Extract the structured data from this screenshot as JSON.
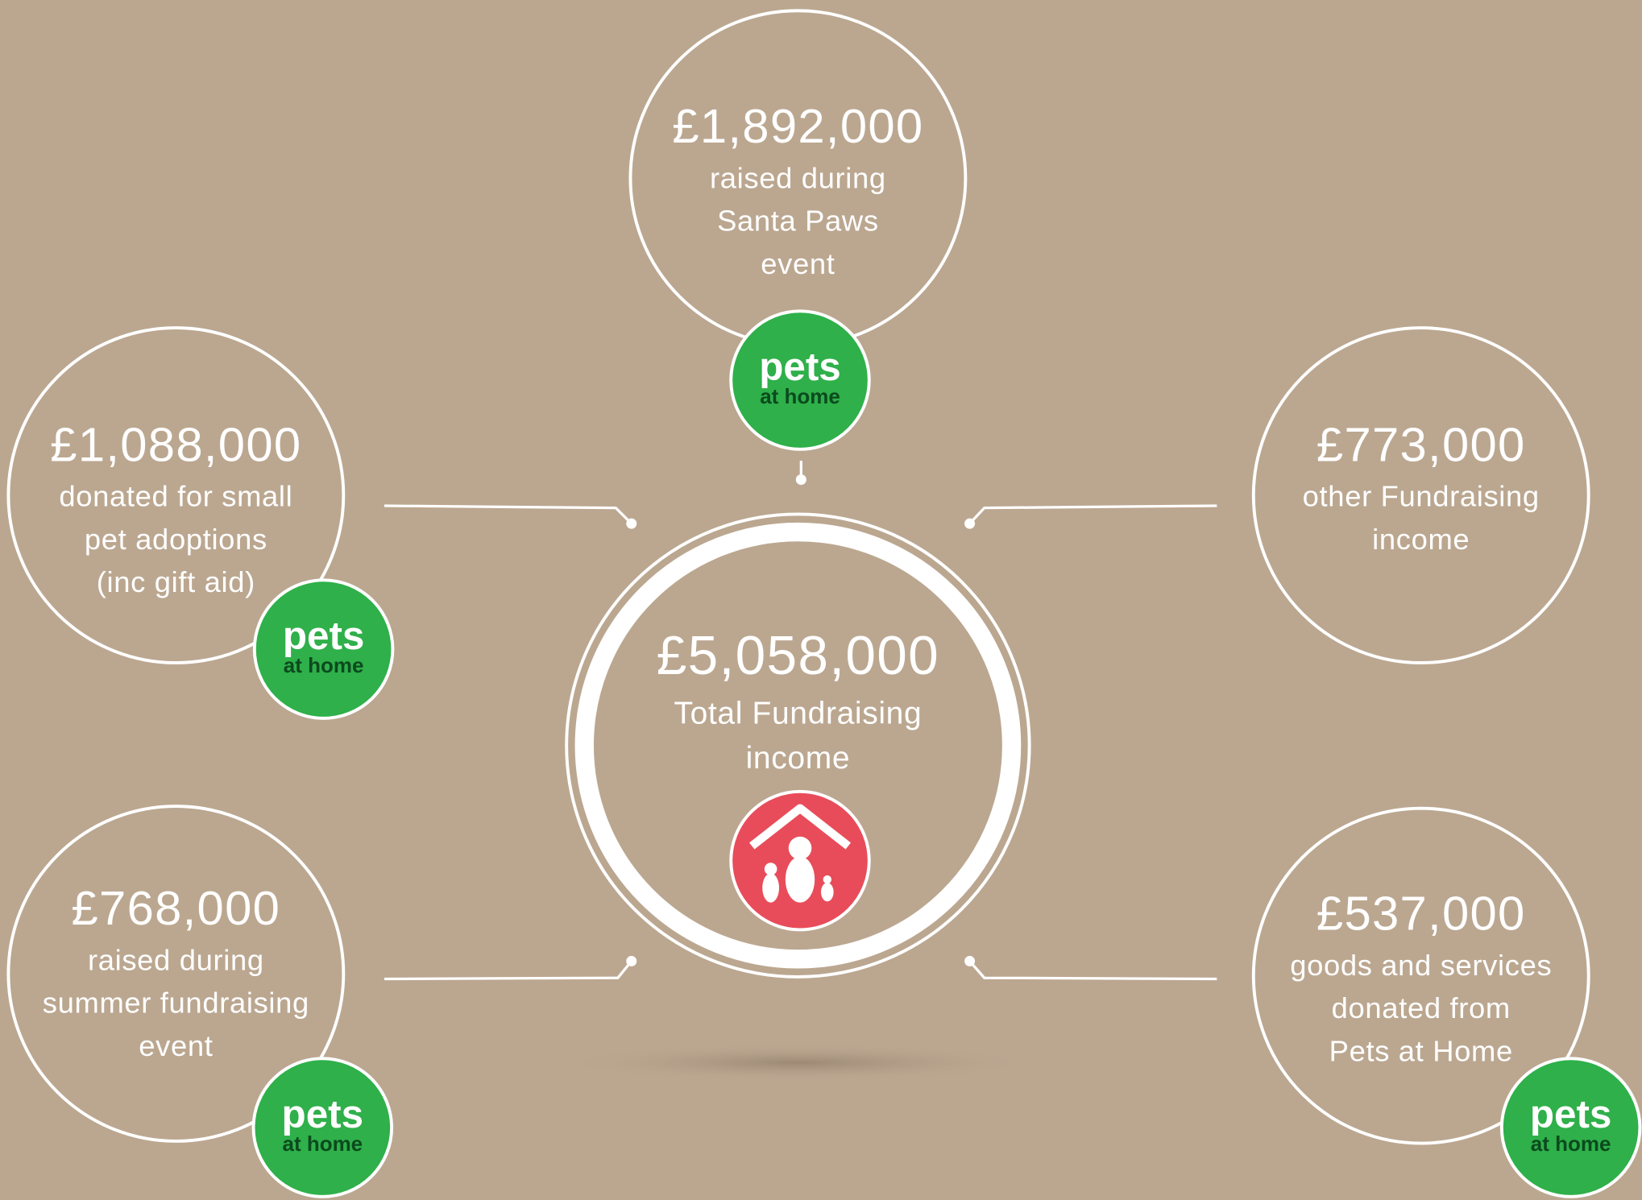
{
  "logo": {
    "top": "pets",
    "bottom": "at home"
  },
  "center": {
    "amount": "£5,058,000",
    "lines": [
      "Total Fundraising",
      "income"
    ]
  },
  "nodes": [
    {
      "amount": "£1,892,000",
      "lines": [
        "raised during",
        "Santa Paws",
        "event"
      ]
    },
    {
      "amount": "£1,088,000",
      "lines": [
        "donated for small",
        "pet adoptions",
        "(inc gift aid)"
      ]
    },
    {
      "amount": "£773,000",
      "lines": [
        "other Fundraising",
        "income"
      ]
    },
    {
      "amount": "£768,000",
      "lines": [
        "raised during",
        "summer fundraising",
        "event"
      ]
    },
    {
      "amount": "£537,000",
      "lines": [
        "goods and services",
        "donated from",
        "Pets at Home"
      ]
    }
  ]
}
